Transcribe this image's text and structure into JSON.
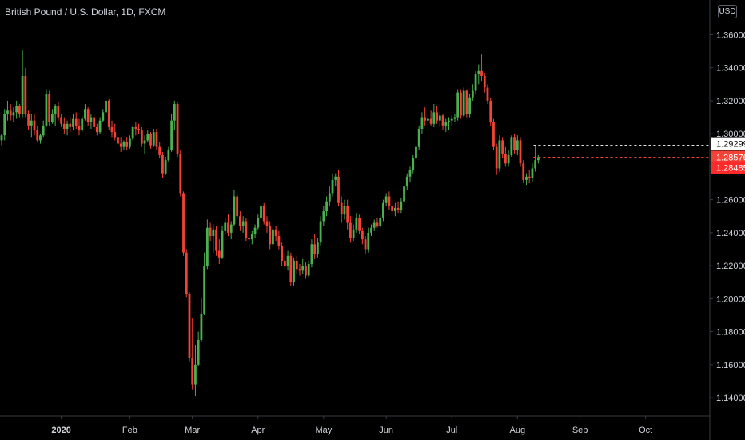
{
  "header": {
    "title": "British Pound / U.S. Dollar, 1D, FXCM",
    "currency_button": "USD"
  },
  "colors": {
    "background": "#000000",
    "up": "#4caf50",
    "down": "#f44336",
    "axis_text": "#d1d4dc",
    "axis_line": "#3a3d45",
    "badge_white_bg": "#ffffff",
    "badge_red_bg": "#f44336",
    "badge_red_dark_bg": "#ff2a2a"
  },
  "chart_data": {
    "type": "candlestick",
    "title": "British Pound / U.S. Dollar, 1D, FXCM",
    "y_range": [
      1.125,
      1.3675
    ],
    "y_ticks": [
      1.36,
      1.34,
      1.32,
      1.3,
      1.28,
      1.26,
      1.24,
      1.22,
      1.2,
      1.18,
      1.16,
      1.14
    ],
    "y_tick_labels": [
      "1.36000",
      "1.34000",
      "1.32000",
      "1.30000",
      "1.28000",
      "1.26000",
      "1.24000",
      "1.22000",
      "1.20000",
      "1.18000",
      "1.16000",
      "1.14000"
    ],
    "x_labels": [
      {
        "label": "2020",
        "index": 20,
        "bold": true
      },
      {
        "label": "Feb",
        "index": 43
      },
      {
        "label": "Mar",
        "index": 64
      },
      {
        "label": "Apr",
        "index": 86
      },
      {
        "label": "May",
        "index": 108
      },
      {
        "label": "Jun",
        "index": 129
      },
      {
        "label": "Jul",
        "index": 151
      },
      {
        "label": "Aug",
        "index": 173
      },
      {
        "label": "Sep",
        "index": 194
      },
      {
        "label": "Oct",
        "index": 216
      }
    ],
    "price_labels": [
      {
        "label": "1.29299",
        "value": 1.293,
        "style": "white",
        "line": "white-dashed"
      },
      {
        "label": "1.28576",
        "value": 1.2858,
        "style": "red",
        "line": "red-dashed"
      },
      {
        "label": "1.28485",
        "value": 1.2849,
        "style": "red-dark",
        "line": "none"
      }
    ],
    "candles": [
      {
        "o": 1.296,
        "h": 1.3,
        "l": 1.293,
        "c": 1.299
      },
      {
        "o": 1.299,
        "h": 1.315,
        "l": 1.296,
        "c": 1.312
      },
      {
        "o": 1.312,
        "h": 1.32,
        "l": 1.308,
        "c": 1.314
      },
      {
        "o": 1.314,
        "h": 1.318,
        "l": 1.308,
        "c": 1.311
      },
      {
        "o": 1.311,
        "h": 1.316,
        "l": 1.307,
        "c": 1.313
      },
      {
        "o": 1.313,
        "h": 1.32,
        "l": 1.309,
        "c": 1.317
      },
      {
        "o": 1.317,
        "h": 1.318,
        "l": 1.31,
        "c": 1.312
      },
      {
        "o": 1.312,
        "h": 1.351,
        "l": 1.31,
        "c": 1.335
      },
      {
        "o": 1.335,
        "h": 1.34,
        "l": 1.31,
        "c": 1.312
      },
      {
        "o": 1.312,
        "h": 1.314,
        "l": 1.302,
        "c": 1.305
      },
      {
        "o": 1.305,
        "h": 1.312,
        "l": 1.298,
        "c": 1.308
      },
      {
        "o": 1.308,
        "h": 1.312,
        "l": 1.299,
        "c": 1.302
      },
      {
        "o": 1.302,
        "h": 1.305,
        "l": 1.295,
        "c": 1.296
      },
      {
        "o": 1.296,
        "h": 1.3,
        "l": 1.294,
        "c": 1.299
      },
      {
        "o": 1.299,
        "h": 1.308,
        "l": 1.298,
        "c": 1.305
      },
      {
        "o": 1.305,
        "h": 1.327,
        "l": 1.304,
        "c": 1.324
      },
      {
        "o": 1.324,
        "h": 1.326,
        "l": 1.305,
        "c": 1.307
      },
      {
        "o": 1.307,
        "h": 1.315,
        "l": 1.306,
        "c": 1.312
      },
      {
        "o": 1.312,
        "h": 1.318,
        "l": 1.305,
        "c": 1.317
      },
      {
        "o": 1.317,
        "h": 1.319,
        "l": 1.308,
        "c": 1.31
      },
      {
        "o": 1.31,
        "h": 1.312,
        "l": 1.304,
        "c": 1.306
      },
      {
        "o": 1.306,
        "h": 1.31,
        "l": 1.3,
        "c": 1.303
      },
      {
        "o": 1.303,
        "h": 1.308,
        "l": 1.299,
        "c": 1.306
      },
      {
        "o": 1.306,
        "h": 1.31,
        "l": 1.301,
        "c": 1.304
      },
      {
        "o": 1.304,
        "h": 1.312,
        "l": 1.302,
        "c": 1.309
      },
      {
        "o": 1.309,
        "h": 1.313,
        "l": 1.303,
        "c": 1.305
      },
      {
        "o": 1.305,
        "h": 1.309,
        "l": 1.299,
        "c": 1.302
      },
      {
        "o": 1.302,
        "h": 1.311,
        "l": 1.301,
        "c": 1.309
      },
      {
        "o": 1.309,
        "h": 1.318,
        "l": 1.308,
        "c": 1.315
      },
      {
        "o": 1.315,
        "h": 1.316,
        "l": 1.305,
        "c": 1.307
      },
      {
        "o": 1.307,
        "h": 1.312,
        "l": 1.303,
        "c": 1.31
      },
      {
        "o": 1.31,
        "h": 1.312,
        "l": 1.302,
        "c": 1.304
      },
      {
        "o": 1.304,
        "h": 1.306,
        "l": 1.299,
        "c": 1.301
      },
      {
        "o": 1.301,
        "h": 1.31,
        "l": 1.3,
        "c": 1.308
      },
      {
        "o": 1.308,
        "h": 1.315,
        "l": 1.307,
        "c": 1.313
      },
      {
        "o": 1.313,
        "h": 1.324,
        "l": 1.311,
        "c": 1.32
      },
      {
        "o": 1.32,
        "h": 1.321,
        "l": 1.302,
        "c": 1.304
      },
      {
        "o": 1.304,
        "h": 1.308,
        "l": 1.298,
        "c": 1.301
      },
      {
        "o": 1.301,
        "h": 1.306,
        "l": 1.296,
        "c": 1.298
      },
      {
        "o": 1.298,
        "h": 1.3,
        "l": 1.291,
        "c": 1.294
      },
      {
        "o": 1.294,
        "h": 1.298,
        "l": 1.289,
        "c": 1.292
      },
      {
        "o": 1.292,
        "h": 1.296,
        "l": 1.29,
        "c": 1.295
      },
      {
        "o": 1.295,
        "h": 1.298,
        "l": 1.29,
        "c": 1.292
      },
      {
        "o": 1.292,
        "h": 1.299,
        "l": 1.291,
        "c": 1.297
      },
      {
        "o": 1.297,
        "h": 1.305,
        "l": 1.296,
        "c": 1.304
      },
      {
        "o": 1.304,
        "h": 1.307,
        "l": 1.299,
        "c": 1.303
      },
      {
        "o": 1.303,
        "h": 1.306,
        "l": 1.3,
        "c": 1.302
      },
      {
        "o": 1.302,
        "h": 1.304,
        "l": 1.292,
        "c": 1.294
      },
      {
        "o": 1.294,
        "h": 1.299,
        "l": 1.288,
        "c": 1.296
      },
      {
        "o": 1.296,
        "h": 1.302,
        "l": 1.295,
        "c": 1.3
      },
      {
        "o": 1.3,
        "h": 1.301,
        "l": 1.291,
        "c": 1.293
      },
      {
        "o": 1.293,
        "h": 1.303,
        "l": 1.292,
        "c": 1.301
      },
      {
        "o": 1.301,
        "h": 1.303,
        "l": 1.29,
        "c": 1.292
      },
      {
        "o": 1.292,
        "h": 1.295,
        "l": 1.285,
        "c": 1.287
      },
      {
        "o": 1.287,
        "h": 1.289,
        "l": 1.273,
        "c": 1.276
      },
      {
        "o": 1.276,
        "h": 1.286,
        "l": 1.275,
        "c": 1.284
      },
      {
        "o": 1.284,
        "h": 1.292,
        "l": 1.283,
        "c": 1.29
      },
      {
        "o": 1.29,
        "h": 1.312,
        "l": 1.289,
        "c": 1.308
      },
      {
        "o": 1.308,
        "h": 1.32,
        "l": 1.302,
        "c": 1.318
      },
      {
        "o": 1.318,
        "h": 1.319,
        "l": 1.286,
        "c": 1.288
      },
      {
        "o": 1.288,
        "h": 1.29,
        "l": 1.262,
        "c": 1.264
      },
      {
        "o": 1.264,
        "h": 1.265,
        "l": 1.226,
        "c": 1.228
      },
      {
        "o": 1.228,
        "h": 1.23,
        "l": 1.201,
        "c": 1.203
      },
      {
        "o": 1.203,
        "h": 1.204,
        "l": 1.162,
        "c": 1.164
      },
      {
        "o": 1.164,
        "h": 1.188,
        "l": 1.145,
        "c": 1.148
      },
      {
        "o": 1.148,
        "h": 1.172,
        "l": 1.141,
        "c": 1.16
      },
      {
        "o": 1.16,
        "h": 1.18,
        "l": 1.159,
        "c": 1.175
      },
      {
        "o": 1.175,
        "h": 1.2,
        "l": 1.174,
        "c": 1.191
      },
      {
        "o": 1.191,
        "h": 1.228,
        "l": 1.19,
        "c": 1.22
      },
      {
        "o": 1.22,
        "h": 1.248,
        "l": 1.218,
        "c": 1.243
      },
      {
        "o": 1.243,
        "h": 1.246,
        "l": 1.235,
        "c": 1.238
      },
      {
        "o": 1.238,
        "h": 1.245,
        "l": 1.228,
        "c": 1.242
      },
      {
        "o": 1.242,
        "h": 1.244,
        "l": 1.226,
        "c": 1.229
      },
      {
        "o": 1.229,
        "h": 1.236,
        "l": 1.221,
        "c": 1.225
      },
      {
        "o": 1.225,
        "h": 1.244,
        "l": 1.224,
        "c": 1.241
      },
      {
        "o": 1.241,
        "h": 1.249,
        "l": 1.239,
        "c": 1.246
      },
      {
        "o": 1.246,
        "h": 1.251,
        "l": 1.238,
        "c": 1.24
      },
      {
        "o": 1.24,
        "h": 1.247,
        "l": 1.236,
        "c": 1.245
      },
      {
        "o": 1.245,
        "h": 1.266,
        "l": 1.244,
        "c": 1.262
      },
      {
        "o": 1.262,
        "h": 1.264,
        "l": 1.248,
        "c": 1.25
      },
      {
        "o": 1.25,
        "h": 1.253,
        "l": 1.241,
        "c": 1.244
      },
      {
        "o": 1.244,
        "h": 1.25,
        "l": 1.24,
        "c": 1.247
      },
      {
        "o": 1.247,
        "h": 1.249,
        "l": 1.235,
        "c": 1.237
      },
      {
        "o": 1.237,
        "h": 1.242,
        "l": 1.229,
        "c": 1.236
      },
      {
        "o": 1.236,
        "h": 1.241,
        "l": 1.233,
        "c": 1.239
      },
      {
        "o": 1.239,
        "h": 1.245,
        "l": 1.237,
        "c": 1.243
      },
      {
        "o": 1.243,
        "h": 1.251,
        "l": 1.242,
        "c": 1.249
      },
      {
        "o": 1.249,
        "h": 1.265,
        "l": 1.247,
        "c": 1.256
      },
      {
        "o": 1.256,
        "h": 1.258,
        "l": 1.245,
        "c": 1.247
      },
      {
        "o": 1.247,
        "h": 1.25,
        "l": 1.24,
        "c": 1.244
      },
      {
        "o": 1.244,
        "h": 1.247,
        "l": 1.23,
        "c": 1.233
      },
      {
        "o": 1.233,
        "h": 1.245,
        "l": 1.231,
        "c": 1.242
      },
      {
        "o": 1.242,
        "h": 1.244,
        "l": 1.235,
        "c": 1.238
      },
      {
        "o": 1.238,
        "h": 1.241,
        "l": 1.23,
        "c": 1.232
      },
      {
        "o": 1.232,
        "h": 1.234,
        "l": 1.22,
        "c": 1.223
      },
      {
        "o": 1.223,
        "h": 1.227,
        "l": 1.218,
        "c": 1.22
      },
      {
        "o": 1.22,
        "h": 1.229,
        "l": 1.217,
        "c": 1.226
      },
      {
        "o": 1.226,
        "h": 1.228,
        "l": 1.208,
        "c": 1.21
      },
      {
        "o": 1.21,
        "h": 1.225,
        "l": 1.208,
        "c": 1.223
      },
      {
        "o": 1.223,
        "h": 1.226,
        "l": 1.215,
        "c": 1.218
      },
      {
        "o": 1.218,
        "h": 1.221,
        "l": 1.214,
        "c": 1.217
      },
      {
        "o": 1.217,
        "h": 1.224,
        "l": 1.215,
        "c": 1.22
      },
      {
        "o": 1.22,
        "h": 1.222,
        "l": 1.212,
        "c": 1.214
      },
      {
        "o": 1.214,
        "h": 1.223,
        "l": 1.213,
        "c": 1.221
      },
      {
        "o": 1.221,
        "h": 1.236,
        "l": 1.219,
        "c": 1.233
      },
      {
        "o": 1.233,
        "h": 1.239,
        "l": 1.224,
        "c": 1.227
      },
      {
        "o": 1.227,
        "h": 1.237,
        "l": 1.225,
        "c": 1.234
      },
      {
        "o": 1.234,
        "h": 1.25,
        "l": 1.232,
        "c": 1.247
      },
      {
        "o": 1.247,
        "h": 1.256,
        "l": 1.244,
        "c": 1.253
      },
      {
        "o": 1.253,
        "h": 1.262,
        "l": 1.25,
        "c": 1.259
      },
      {
        "o": 1.259,
        "h": 1.268,
        "l": 1.256,
        "c": 1.264
      },
      {
        "o": 1.264,
        "h": 1.276,
        "l": 1.262,
        "c": 1.272
      },
      {
        "o": 1.272,
        "h": 1.276,
        "l": 1.268,
        "c": 1.274
      },
      {
        "o": 1.274,
        "h": 1.278,
        "l": 1.256,
        "c": 1.258
      },
      {
        "o": 1.258,
        "h": 1.262,
        "l": 1.246,
        "c": 1.251
      },
      {
        "o": 1.251,
        "h": 1.26,
        "l": 1.248,
        "c": 1.256
      },
      {
        "o": 1.256,
        "h": 1.26,
        "l": 1.242,
        "c": 1.246
      },
      {
        "o": 1.246,
        "h": 1.25,
        "l": 1.234,
        "c": 1.237
      },
      {
        "o": 1.237,
        "h": 1.245,
        "l": 1.235,
        "c": 1.242
      },
      {
        "o": 1.242,
        "h": 1.252,
        "l": 1.24,
        "c": 1.249
      },
      {
        "o": 1.249,
        "h": 1.251,
        "l": 1.239,
        "c": 1.241
      },
      {
        "o": 1.241,
        "h": 1.243,
        "l": 1.233,
        "c": 1.236
      },
      {
        "o": 1.236,
        "h": 1.238,
        "l": 1.227,
        "c": 1.23
      },
      {
        "o": 1.23,
        "h": 1.243,
        "l": 1.228,
        "c": 1.24
      },
      {
        "o": 1.24,
        "h": 1.245,
        "l": 1.238,
        "c": 1.243
      },
      {
        "o": 1.243,
        "h": 1.248,
        "l": 1.241,
        "c": 1.246
      },
      {
        "o": 1.246,
        "h": 1.249,
        "l": 1.243,
        "c": 1.244
      },
      {
        "o": 1.244,
        "h": 1.251,
        "l": 1.243,
        "c": 1.249
      },
      {
        "o": 1.249,
        "h": 1.26,
        "l": 1.247,
        "c": 1.258
      },
      {
        "o": 1.258,
        "h": 1.264,
        "l": 1.256,
        "c": 1.262
      },
      {
        "o": 1.262,
        "h": 1.265,
        "l": 1.254,
        "c": 1.256
      },
      {
        "o": 1.256,
        "h": 1.26,
        "l": 1.251,
        "c": 1.253
      },
      {
        "o": 1.253,
        "h": 1.258,
        "l": 1.25,
        "c": 1.255
      },
      {
        "o": 1.255,
        "h": 1.259,
        "l": 1.252,
        "c": 1.254
      },
      {
        "o": 1.254,
        "h": 1.261,
        "l": 1.252,
        "c": 1.259
      },
      {
        "o": 1.259,
        "h": 1.27,
        "l": 1.257,
        "c": 1.268
      },
      {
        "o": 1.268,
        "h": 1.276,
        "l": 1.266,
        "c": 1.274
      },
      {
        "o": 1.274,
        "h": 1.28,
        "l": 1.271,
        "c": 1.278
      },
      {
        "o": 1.278,
        "h": 1.287,
        "l": 1.276,
        "c": 1.285
      },
      {
        "o": 1.285,
        "h": 1.295,
        "l": 1.284,
        "c": 1.292
      },
      {
        "o": 1.292,
        "h": 1.305,
        "l": 1.29,
        "c": 1.303
      },
      {
        "o": 1.303,
        "h": 1.313,
        "l": 1.3,
        "c": 1.31
      },
      {
        "o": 1.31,
        "h": 1.316,
        "l": 1.305,
        "c": 1.308
      },
      {
        "o": 1.308,
        "h": 1.312,
        "l": 1.303,
        "c": 1.309
      },
      {
        "o": 1.309,
        "h": 1.314,
        "l": 1.305,
        "c": 1.306
      },
      {
        "o": 1.306,
        "h": 1.318,
        "l": 1.304,
        "c": 1.313
      },
      {
        "o": 1.313,
        "h": 1.317,
        "l": 1.306,
        "c": 1.308
      },
      {
        "o": 1.308,
        "h": 1.313,
        "l": 1.304,
        "c": 1.311
      },
      {
        "o": 1.311,
        "h": 1.312,
        "l": 1.302,
        "c": 1.305
      },
      {
        "o": 1.305,
        "h": 1.309,
        "l": 1.301,
        "c": 1.307
      },
      {
        "o": 1.307,
        "h": 1.31,
        "l": 1.302,
        "c": 1.308
      },
      {
        "o": 1.308,
        "h": 1.311,
        "l": 1.305,
        "c": 1.309
      },
      {
        "o": 1.309,
        "h": 1.312,
        "l": 1.307,
        "c": 1.31
      },
      {
        "o": 1.31,
        "h": 1.327,
        "l": 1.308,
        "c": 1.325
      },
      {
        "o": 1.325,
        "h": 1.327,
        "l": 1.309,
        "c": 1.311
      },
      {
        "o": 1.311,
        "h": 1.328,
        "l": 1.31,
        "c": 1.326
      },
      {
        "o": 1.326,
        "h": 1.327,
        "l": 1.31,
        "c": 1.312
      },
      {
        "o": 1.312,
        "h": 1.324,
        "l": 1.31,
        "c": 1.322
      },
      {
        "o": 1.322,
        "h": 1.33,
        "l": 1.32,
        "c": 1.326
      },
      {
        "o": 1.326,
        "h": 1.338,
        "l": 1.324,
        "c": 1.336
      },
      {
        "o": 1.336,
        "h": 1.342,
        "l": 1.33,
        "c": 1.338
      },
      {
        "o": 1.338,
        "h": 1.348,
        "l": 1.332,
        "c": 1.335
      },
      {
        "o": 1.335,
        "h": 1.337,
        "l": 1.325,
        "c": 1.328
      },
      {
        "o": 1.328,
        "h": 1.33,
        "l": 1.318,
        "c": 1.32
      },
      {
        "o": 1.32,
        "h": 1.322,
        "l": 1.305,
        "c": 1.307
      },
      {
        "o": 1.307,
        "h": 1.309,
        "l": 1.29,
        "c": 1.292
      },
      {
        "o": 1.292,
        "h": 1.294,
        "l": 1.275,
        "c": 1.279
      },
      {
        "o": 1.279,
        "h": 1.299,
        "l": 1.277,
        "c": 1.296
      },
      {
        "o": 1.296,
        "h": 1.298,
        "l": 1.285,
        "c": 1.288
      },
      {
        "o": 1.288,
        "h": 1.292,
        "l": 1.28,
        "c": 1.282
      },
      {
        "o": 1.282,
        "h": 1.29,
        "l": 1.28,
        "c": 1.287
      },
      {
        "o": 1.287,
        "h": 1.299,
        "l": 1.286,
        "c": 1.298
      },
      {
        "o": 1.298,
        "h": 1.3,
        "l": 1.288,
        "c": 1.29
      },
      {
        "o": 1.29,
        "h": 1.299,
        "l": 1.287,
        "c": 1.296
      },
      {
        "o": 1.296,
        "h": 1.298,
        "l": 1.28,
        "c": 1.282
      },
      {
        "o": 1.282,
        "h": 1.284,
        "l": 1.27,
        "c": 1.272
      },
      {
        "o": 1.272,
        "h": 1.276,
        "l": 1.269,
        "c": 1.274
      },
      {
        "o": 1.274,
        "h": 1.278,
        "l": 1.27,
        "c": 1.273
      },
      {
        "o": 1.273,
        "h": 1.282,
        "l": 1.271,
        "c": 1.279
      },
      {
        "o": 1.279,
        "h": 1.293,
        "l": 1.277,
        "c": 1.284
      },
      {
        "o": 1.284,
        "h": 1.287,
        "l": 1.282,
        "c": 1.2858
      }
    ]
  }
}
